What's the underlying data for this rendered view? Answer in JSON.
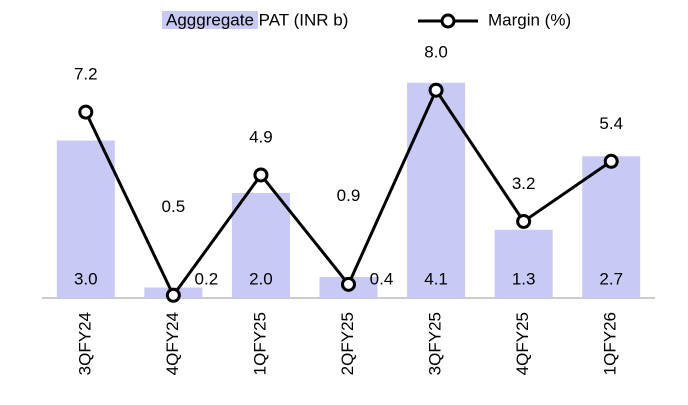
{
  "chart_data": {
    "type": "bar-line",
    "categories": [
      "3QFY24",
      "4QFY24",
      "1QFY25",
      "2QFY25",
      "3QFY25",
      "4QFY25",
      "1QFY26"
    ],
    "series": [
      {
        "name": "Agggregate PAT (INR b)",
        "color": "#c9c9f5",
        "type": "bar",
        "values": [
          3.0,
          0.2,
          2.0,
          0.4,
          4.1,
          1.3,
          2.7
        ],
        "value_labels": [
          "3.0",
          "0.2",
          "2.0",
          "0.4",
          "4.1",
          "1.3",
          "2.7"
        ]
      },
      {
        "name": "Margin (%)",
        "color": "#000000",
        "type": "line",
        "axis": "y2",
        "values": [
          7.2,
          0.5,
          4.9,
          0.9,
          8.0,
          3.2,
          5.4
        ],
        "value_labels": [
          "7.2",
          "0.5",
          "4.9",
          "0.9",
          "8.0",
          "3.2",
          "5.4"
        ]
      }
    ],
    "ylim": [
      0,
      5
    ],
    "y2lim": [
      0.4,
      10
    ]
  }
}
